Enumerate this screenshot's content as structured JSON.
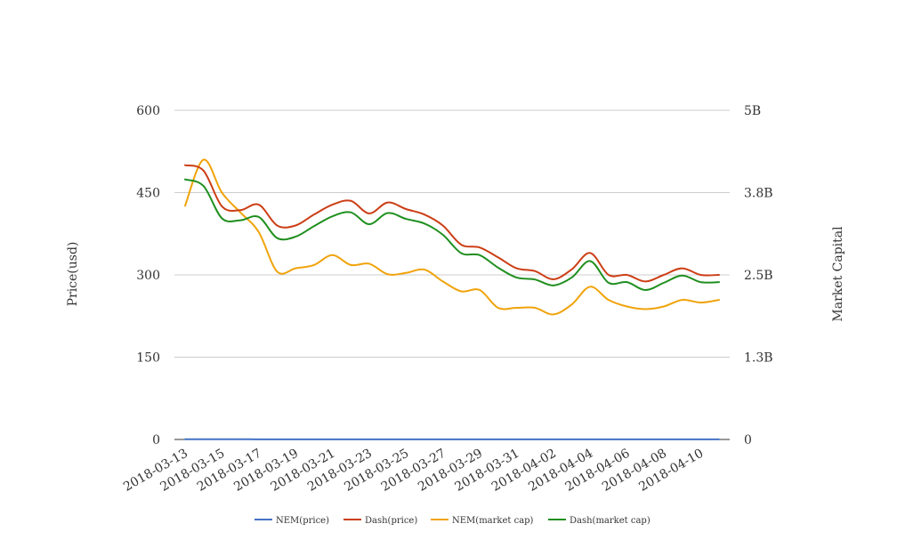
{
  "chart_data": {
    "type": "line",
    "title": "",
    "ylabel_left": "Price(usd)",
    "ylabel_right": "Market Capital",
    "y_left_ticks": [
      "0",
      "150",
      "300",
      "450",
      "600"
    ],
    "y_left_range": [
      0,
      600
    ],
    "y_right_ticks": [
      "0",
      "1.3B",
      "2.5B",
      "3.8B",
      "5B"
    ],
    "y_right_range": [
      0,
      5000000000
    ],
    "grid": true,
    "legend_position": "bottom",
    "x_ticks": [
      "2018-03-13",
      "2018-03-15",
      "2018-03-17",
      "2018-03-19",
      "2018-03-21",
      "2018-03-23",
      "2018-03-25",
      "2018-03-27",
      "2018-03-29",
      "2018-03-31",
      "2018-04-02",
      "2018-04-04",
      "2018-04-06",
      "2018-04-08",
      "2018-04-10"
    ],
    "x": [
      "2018-03-13",
      "2018-03-14",
      "2018-03-15",
      "2018-03-16",
      "2018-03-17",
      "2018-03-18",
      "2018-03-19",
      "2018-03-20",
      "2018-03-21",
      "2018-03-22",
      "2018-03-23",
      "2018-03-24",
      "2018-03-25",
      "2018-03-26",
      "2018-03-27",
      "2018-03-28",
      "2018-03-29",
      "2018-03-30",
      "2018-03-31",
      "2018-04-01",
      "2018-04-02",
      "2018-04-03",
      "2018-04-04",
      "2018-04-05",
      "2018-04-06",
      "2018-04-07",
      "2018-04-08",
      "2018-04-09",
      "2018-04-10",
      "2018-04-11"
    ],
    "series": [
      {
        "name": "NEM(price)",
        "color": "#4472c4",
        "axis": "left",
        "values": [
          0.38,
          0.39,
          0.33,
          0.31,
          0.29,
          0.25,
          0.26,
          0.26,
          0.28,
          0.27,
          0.26,
          0.26,
          0.25,
          0.26,
          0.24,
          0.23,
          0.22,
          0.2,
          0.2,
          0.2,
          0.19,
          0.21,
          0.24,
          0.22,
          0.21,
          0.2,
          0.2,
          0.21,
          0.21,
          0.21
        ]
      },
      {
        "name": "Dash(price)",
        "color": "#cc3e15",
        "axis": "left",
        "values": [
          500,
          490,
          425,
          418,
          428,
          390,
          390,
          410,
          428,
          435,
          412,
          432,
          420,
          410,
          390,
          355,
          350,
          332,
          312,
          307,
          292,
          310,
          340,
          300,
          300,
          288,
          300,
          312,
          300,
          300
        ]
      },
      {
        "name": "NEM(market cap)",
        "color": "#f0a30a",
        "axis": "right",
        "values": [
          3550000000,
          4250000000,
          3750000000,
          3450000000,
          3150000000,
          2550000000,
          2600000000,
          2650000000,
          2800000000,
          2650000000,
          2670000000,
          2510000000,
          2530000000,
          2580000000,
          2400000000,
          2250000000,
          2270000000,
          2000000000,
          2000000000,
          2000000000,
          1900000000,
          2050000000,
          2320000000,
          2120000000,
          2020000000,
          1980000000,
          2020000000,
          2120000000,
          2080000000,
          2120000000
        ]
      },
      {
        "name": "Dash(market cap)",
        "color": "#1f8f1f",
        "axis": "right",
        "values": [
          3950000000,
          3850000000,
          3360000000,
          3330000000,
          3380000000,
          3060000000,
          3080000000,
          3240000000,
          3390000000,
          3450000000,
          3270000000,
          3440000000,
          3350000000,
          3280000000,
          3110000000,
          2830000000,
          2800000000,
          2610000000,
          2460000000,
          2430000000,
          2340000000,
          2460000000,
          2710000000,
          2380000000,
          2390000000,
          2270000000,
          2380000000,
          2490000000,
          2390000000,
          2390000000
        ]
      }
    ]
  }
}
